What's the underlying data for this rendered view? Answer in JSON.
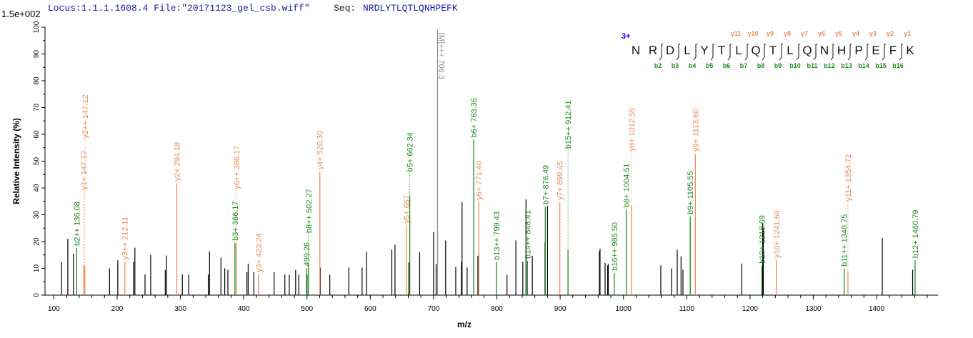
{
  "header": {
    "locus_label": "Locus:1.1.1.1608.4 File:\"20171123_gel_csb.wiff\"",
    "seq_label": "Seq:",
    "sequence": "NRDLYTLQTLQNHPEFK",
    "scale_label": "1.5e+002"
  },
  "colors": {
    "b_ion": "#1E8B1E",
    "y_ion": "#EE8A55",
    "precursor": "#8C8C8C",
    "unassigned": "#000000",
    "header_text": "#1A1AAA",
    "charge": "#0000EE"
  },
  "ladder": {
    "charge": "3+",
    "residues": [
      "N",
      "R",
      "D",
      "L",
      "Y",
      "T",
      "L",
      "Q",
      "T",
      "L",
      "Q",
      "N",
      "H",
      "P",
      "E",
      "F",
      "K"
    ],
    "y_labels": [
      "y11",
      "y10",
      "y9",
      "y8",
      "y7",
      "y6",
      "y5",
      "y4",
      "y3",
      "y2",
      "y1"
    ],
    "b_labels": [
      "b2",
      "b3",
      "b4",
      "b5",
      "b6",
      "b7",
      "b8",
      "b9",
      "b10",
      "b11",
      "b12",
      "b13",
      "b14",
      "b15",
      "b16"
    ]
  },
  "chart_data": {
    "type": "bar",
    "title": "",
    "xlabel": "m/z",
    "ylabel": "Relative   Intensity (%)",
    "xlim": [
      86,
      1497
    ],
    "ylim": [
      0,
      100
    ],
    "xticks": [
      100,
      200,
      300,
      400,
      500,
      600,
      700,
      800,
      900,
      1000,
      1100,
      1200,
      1300,
      1400
    ],
    "yticks": [
      0,
      10,
      20,
      30,
      40,
      50,
      60,
      70,
      80,
      90,
      100
    ],
    "grid": false,
    "annotated_peaks": [
      {
        "mz": 136.08,
        "intensity": 17.6,
        "type": "b",
        "label": "b2++ 136.08"
      },
      {
        "mz": 147.12,
        "intensity": 11.0,
        "type": "y",
        "label": "y1+ 147.12"
      },
      {
        "mz": 149.0,
        "intensity": 11.0,
        "type": "y",
        "label": "y2++ 147.12"
      },
      {
        "mz": 212.11,
        "intensity": 12.4,
        "type": "y",
        "label": "y3++ 212.11"
      },
      {
        "mz": 294.18,
        "intensity": 41.7,
        "type": "y",
        "label": "y2+ 294.18"
      },
      {
        "mz": 386.17,
        "intensity": 19.5,
        "type": "b",
        "label": "b3+ 386.17"
      },
      {
        "mz": 388.5,
        "intensity": 19.5,
        "type": "y",
        "label": "y6++ 386.17"
      },
      {
        "mz": 423.24,
        "intensity": 7.7,
        "type": "y",
        "label": "y3+ 423.24"
      },
      {
        "mz": 499.26,
        "intensity": 10.0,
        "type": "b",
        "label": "499.26"
      },
      {
        "mz": 502.27,
        "intensity": 11.5,
        "type": "b",
        "label": "b8++ 502.27"
      },
      {
        "mz": 520.3,
        "intensity": 46.0,
        "type": "y",
        "label": "y4+ 520.30"
      },
      {
        "mz": 657.0,
        "intensity": 26.0,
        "type": "y",
        "label": "y5+ 657..."
      },
      {
        "mz": 662.34,
        "intensity": 37.0,
        "type": "b",
        "label": "b5+ 662.34"
      },
      {
        "mz": 706.3,
        "intensity": 99.0,
        "type": "precursor",
        "label": "[M]+++ 706.3"
      },
      {
        "mz": 763.36,
        "intensity": 58.0,
        "type": "b",
        "label": "b6+ 763.36"
      },
      {
        "mz": 771.4,
        "intensity": 34.7,
        "type": "y",
        "label": "y6+ 771.40"
      },
      {
        "mz": 799.43,
        "intensity": 12.3,
        "type": "b",
        "label": "b13++ 799.43"
      },
      {
        "mz": 848.41,
        "intensity": 12.8,
        "type": "b",
        "label": "b14++ 848.41"
      },
      {
        "mz": 876.49,
        "intensity": 33.0,
        "type": "b",
        "label": "b7+ 876.49"
      },
      {
        "mz": 899.45,
        "intensity": 34.6,
        "type": "y",
        "label": "y7+ 899.45"
      },
      {
        "mz": 912.41,
        "intensity": 16.8,
        "type": "b",
        "label": "b15++ 912.41"
      },
      {
        "mz": 985.5,
        "intensity": 8.3,
        "type": "b",
        "label": "b16++ 985.50"
      },
      {
        "mz": 1004.51,
        "intensity": 32.0,
        "type": "b",
        "label": "b8+ 1004.51"
      },
      {
        "mz": 1012.55,
        "intensity": 33.3,
        "type": "y",
        "label": "y8+ 1012.55"
      },
      {
        "mz": 1105.55,
        "intensity": 29.3,
        "type": "b",
        "label": "b9+ 1105.55"
      },
      {
        "mz": 1113.6,
        "intensity": 52.8,
        "type": "y",
        "label": "y9+ 1113.60"
      },
      {
        "mz": 1218.69,
        "intensity": 11.0,
        "type": "b",
        "label": "b10+ 1218.69"
      },
      {
        "mz": 1241.68,
        "intensity": 13.0,
        "type": "y",
        "label": "y10+ 1241.68"
      },
      {
        "mz": 1348.75,
        "intensity": 9.9,
        "type": "b",
        "label": "b11++ 1348.75"
      },
      {
        "mz": 1354.72,
        "intensity": 8.8,
        "type": "y",
        "label": "y11+ 1354.72"
      },
      {
        "mz": 1460.79,
        "intensity": 13.0,
        "type": "b",
        "label": "b12+ 1460.79"
      }
    ],
    "unassigned_peaks": [
      [
        112,
        12.4
      ],
      [
        122,
        21
      ],
      [
        131,
        15.5
      ],
      [
        188,
        10
      ],
      [
        201,
        13
      ],
      [
        226,
        12.4
      ],
      [
        228,
        17.7
      ],
      [
        244,
        7.7
      ],
      [
        253,
        15
      ],
      [
        276,
        9.4
      ],
      [
        278,
        14.8
      ],
      [
        303,
        7.7
      ],
      [
        313,
        7.7
      ],
      [
        344,
        7.7
      ],
      [
        346,
        16.3
      ],
      [
        364,
        14
      ],
      [
        370,
        10
      ],
      [
        375,
        9.4
      ],
      [
        405,
        8.6
      ],
      [
        407,
        11.7
      ],
      [
        416,
        8.6
      ],
      [
        448,
        8.6
      ],
      [
        465,
        7.7
      ],
      [
        472,
        7.7
      ],
      [
        482,
        9.4
      ],
      [
        487,
        7.7
      ],
      [
        500,
        7.7
      ],
      [
        521,
        10.3
      ],
      [
        536,
        7.6
      ],
      [
        566,
        10.3
      ],
      [
        587,
        10.3
      ],
      [
        594,
        16
      ],
      [
        634,
        17
      ],
      [
        639,
        18.8
      ],
      [
        661,
        12.2
      ],
      [
        678,
        16
      ],
      [
        700,
        23.6
      ],
      [
        704,
        11.6
      ],
      [
        719,
        20.4
      ],
      [
        735,
        10.5
      ],
      [
        744,
        12.4
      ],
      [
        745,
        34.7
      ],
      [
        753,
        10.3
      ],
      [
        770,
        14.7
      ],
      [
        816,
        7.6
      ],
      [
        830,
        20.4
      ],
      [
        841,
        12.4
      ],
      [
        846,
        35.7
      ],
      [
        856,
        14.7
      ],
      [
        876,
        19.7
      ],
      [
        880,
        33.3
      ],
      [
        962,
        16.4
      ],
      [
        963,
        17.3
      ],
      [
        971,
        12
      ],
      [
        975,
        11.1
      ],
      [
        976,
        11.6
      ],
      [
        1059,
        11.1
      ],
      [
        1076,
        10
      ],
      [
        1085,
        17
      ],
      [
        1091,
        14.5
      ],
      [
        1094,
        9.5
      ],
      [
        1187,
        11.8
      ],
      [
        1220,
        26.7
      ],
      [
        1221,
        24.9
      ],
      [
        1409,
        21.3
      ],
      [
        1457,
        9.5
      ]
    ]
  }
}
